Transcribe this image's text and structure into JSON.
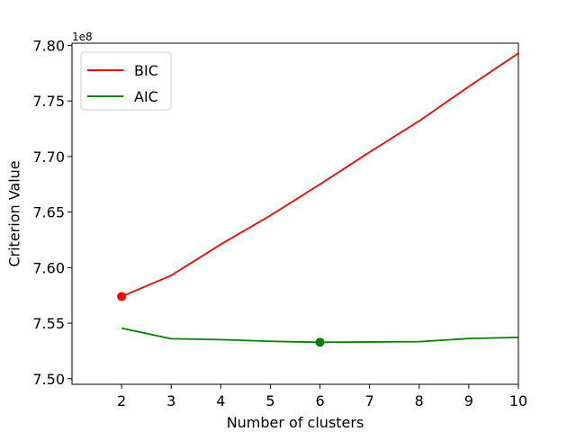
{
  "chart_data": {
    "type": "line",
    "title": "",
    "xlabel": "Number of clusters",
    "ylabel": "Criterion Value",
    "y_offset_label": "1e8",
    "xlim": [
      1,
      10
    ],
    "ylim": [
      7.495,
      7.802
    ],
    "x_ticks": [
      2,
      3,
      4,
      5,
      6,
      7,
      8,
      9,
      10
    ],
    "y_ticks": [
      7.5,
      7.55,
      7.6,
      7.65,
      7.7,
      7.75,
      7.8
    ],
    "y_tick_labels": [
      "7.50",
      "7.55",
      "7.60",
      "7.65",
      "7.70",
      "7.75",
      "7.80"
    ],
    "grid": false,
    "legend_position": "top-left",
    "x": [
      2,
      3,
      4,
      5,
      6,
      7,
      8,
      9,
      10
    ],
    "series": [
      {
        "name": "BIC",
        "color": "#ff0000",
        "values": [
          7.574,
          7.593,
          7.621,
          7.647,
          7.675,
          7.704,
          7.732,
          7.763,
          7.793
        ],
        "marker": {
          "x": 2,
          "y": 7.574
        }
      },
      {
        "name": "AIC",
        "color": "#008000",
        "values": [
          7.5455,
          7.536,
          7.5352,
          7.5337,
          7.5328,
          7.5331,
          7.5334,
          7.5362,
          7.5372
        ],
        "marker": {
          "x": 6,
          "y": 7.5328
        }
      }
    ]
  }
}
